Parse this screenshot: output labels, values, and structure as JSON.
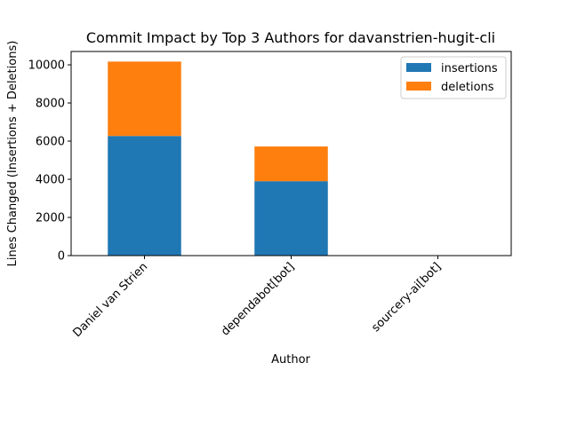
{
  "chart_data": {
    "type": "bar",
    "stacked": true,
    "title": "Commit Impact by Top 3 Authors for davanstrien-hugit-cli",
    "xlabel": "Author",
    "ylabel": "Lines Changed (Insertions + Deletions)",
    "categories": [
      "Daniel van Strien",
      "dependabot[bot]",
      "sourcery-ai[bot]"
    ],
    "series": [
      {
        "name": "insertions",
        "color": "#1f77b4",
        "values": [
          6270,
          3900,
          0
        ]
      },
      {
        "name": "deletions",
        "color": "#ff7f0e",
        "values": [
          3900,
          1820,
          0
        ]
      }
    ],
    "ylim": [
      0,
      10700
    ],
    "yticks": [
      0,
      2000,
      4000,
      6000,
      8000,
      10000
    ],
    "legend_position": "top-right",
    "grid": false
  }
}
